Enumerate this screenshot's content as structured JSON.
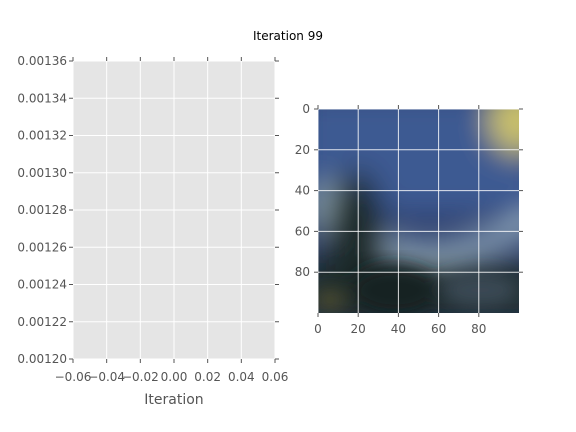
{
  "chart_data": [
    {
      "type": "line",
      "title": "Iteration 99",
      "xlabel": "Iteration",
      "ylabel": "",
      "xlim": [
        -0.06,
        0.06
      ],
      "ylim": [
        0.0012,
        0.00136
      ],
      "xticks": [
        "−0.06",
        "−0.04",
        "−0.02",
        "0.00",
        "0.02",
        "0.04",
        "0.06"
      ],
      "yticks": [
        "0.00120",
        "0.00122",
        "0.00124",
        "0.00126",
        "0.00128",
        "0.00130",
        "0.00132",
        "0.00134",
        "0.00136"
      ],
      "grid": true,
      "series": []
    },
    {
      "type": "heatmap",
      "title": "",
      "xlim": [
        0,
        100
      ],
      "ylim": [
        100,
        0
      ],
      "xticks": [
        "0",
        "20",
        "40",
        "60",
        "80"
      ],
      "yticks": [
        "0",
        "20",
        "40",
        "60",
        "80"
      ],
      "grid": true,
      "colors": {
        "sky_blue": "#3e5a92",
        "light_band": "#9fb8c8",
        "yellow_glow": "#c9c06a",
        "dark_teal": "#1d2c2b",
        "deep_navy": "#2c3d6b"
      }
    }
  ]
}
